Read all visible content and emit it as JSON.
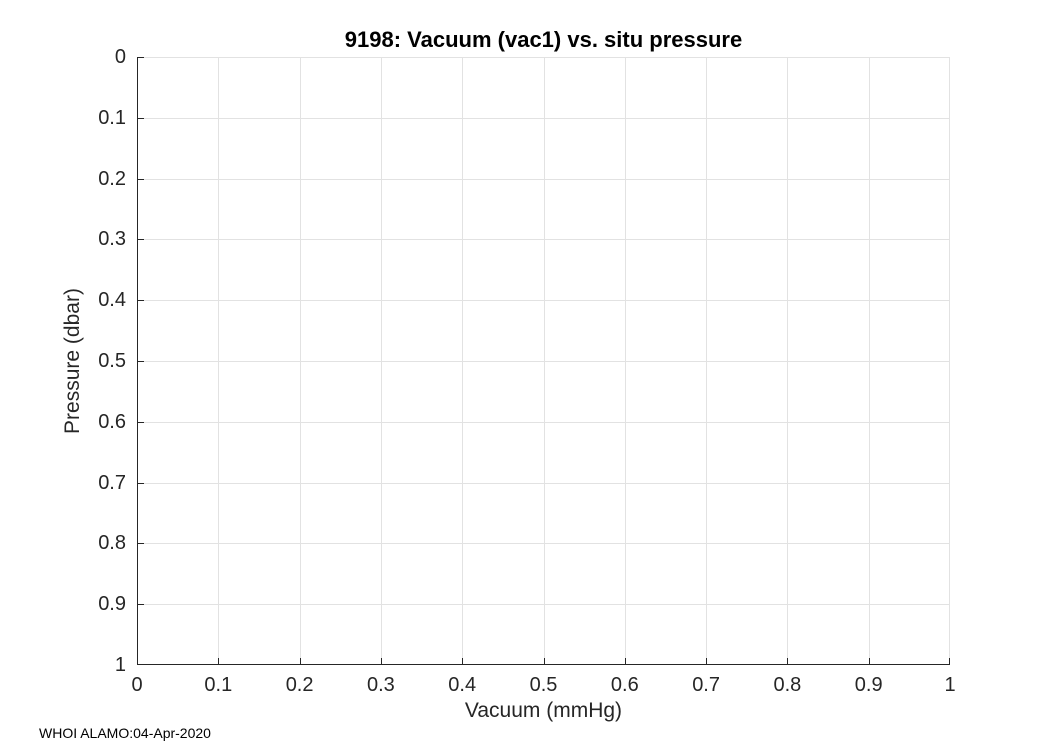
{
  "chart_data": {
    "type": "scatter",
    "title": "9198: Vacuum (vac1) vs. situ pressure",
    "xlabel": "Vacuum (mmHg)",
    "ylabel": "Pressure (dbar)",
    "xlim": [
      0,
      1
    ],
    "ylim": [
      0,
      1
    ],
    "y_axis_reversed": true,
    "grid": true,
    "legend": null,
    "xticks": [
      0,
      0.1,
      0.2,
      0.3,
      0.4,
      0.5,
      0.6,
      0.7,
      0.8,
      0.9,
      1
    ],
    "xtick_labels": [
      "0",
      "0.1",
      "0.2",
      "0.3",
      "0.4",
      "0.5",
      "0.6",
      "0.7",
      "0.8",
      "0.9",
      "1"
    ],
    "yticks": [
      0,
      0.1,
      0.2,
      0.3,
      0.4,
      0.5,
      0.6,
      0.7,
      0.8,
      0.9,
      1
    ],
    "ytick_labels": [
      "0",
      "0.1",
      "0.2",
      "0.3",
      "0.4",
      "0.5",
      "0.6",
      "0.7",
      "0.8",
      "0.9",
      "1"
    ],
    "series": []
  },
  "footer": {
    "text": "WHOI ALAMO:04-Apr-2020"
  },
  "colors": {
    "background": "#ffffff",
    "axis": "#262626",
    "grid": "#e2e2e2",
    "tick_label": "#262626",
    "title": "#000000"
  }
}
